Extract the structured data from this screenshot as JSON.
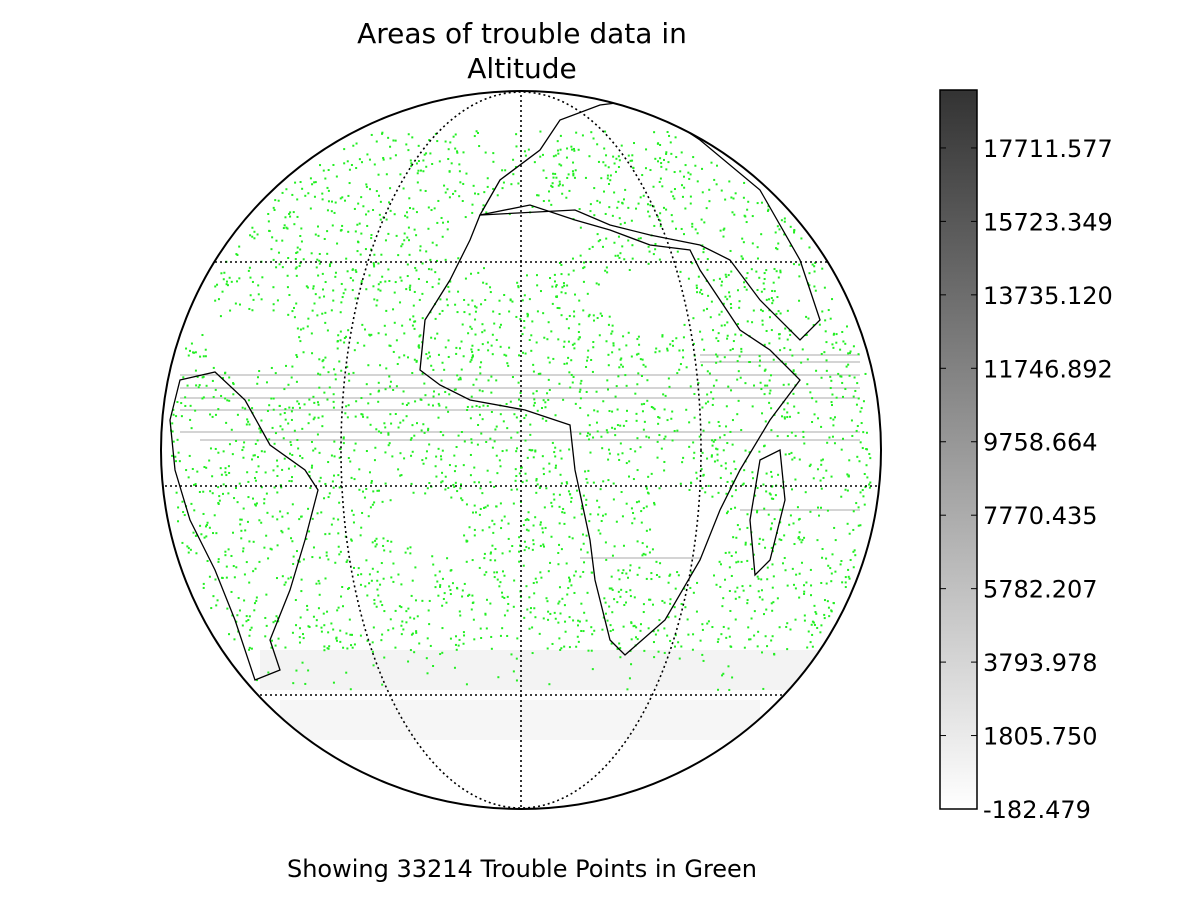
{
  "chart_data": {
    "type": "globe-map",
    "title": "Areas of trouble data in\nAltitude",
    "caption": "Showing 33214 Trouble Points in Green",
    "point_color": "#22ee22",
    "colorbar": {
      "lim": [
        -182.479,
        19280
      ],
      "ticks": [
        -182.479,
        {
          "value": 1805.75,
          "label": "1805.750"
        },
        3793.978,
        5782.207,
        7770.435,
        9758.664,
        11746.892,
        {
          "value": 13735.12,
          "label": "13735.120"
        },
        15723.349,
        17711.577
      ],
      "colors": [
        "#ffffff",
        "#333333"
      ]
    }
  }
}
